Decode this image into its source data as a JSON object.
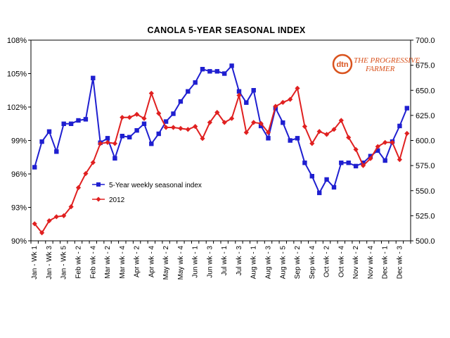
{
  "chart_data": {
    "type": "line",
    "title": "CANOLA 5-YEAR SEASONAL INDEX",
    "logo": {
      "brand": "dtn",
      "name_line1": "THE PROGRESSIVE",
      "name_line2": "FARMER"
    },
    "y_left": {
      "lim": [
        90,
        108
      ],
      "ticks": [
        "90%",
        "93%",
        "96%",
        "99%",
        "102%",
        "105%",
        "108%"
      ],
      "tick_values": [
        90,
        93,
        96,
        99,
        102,
        105,
        108
      ]
    },
    "y_right": {
      "lim": [
        500,
        700
      ],
      "ticks": [
        "500.0",
        "525.0",
        "550.0",
        "575.0",
        "600.0",
        "625.0",
        "650.0",
        "675.0",
        "700.0"
      ],
      "tick_values": [
        500,
        525,
        550,
        575,
        600,
        625,
        650,
        675,
        700
      ]
    },
    "x_tick_labels": [
      "Jan - Wk 1",
      "Jan - Wk 3",
      "Jan - Wk 5",
      "Feb wk - 2",
      "Feb wk - 4",
      "Mar wk - 2",
      "Mar wk - 4",
      "Apr wk - 2",
      "Apr wk - 4",
      "May wk - 2",
      "May wk - 4",
      "Jun wk - 1",
      "Jun wk - 3",
      "Jul wk - 1",
      "Jul wk - 3",
      "Aug wk - 1",
      "Aug wk - 3",
      "Aug wk - 5",
      "Sep wk - 2",
      "Sep wk - 4",
      "Oct wk - 2",
      "Oct wk - 4",
      "Nov wk - 2",
      "Nov wk - 4",
      "Dec wk - 1",
      "Dec wk - 3"
    ],
    "num_points": 52,
    "grid": false,
    "legend_position": "lower-left",
    "series": [
      {
        "name": "5-Year weekly seasonal index",
        "axis": "left",
        "color": "#1f1fd0",
        "marker": "square",
        "values": [
          96.6,
          98.9,
          99.8,
          98.0,
          100.5,
          100.5,
          100.8,
          100.9,
          104.6,
          98.8,
          99.2,
          97.4,
          99.4,
          99.3,
          99.9,
          100.5,
          98.7,
          99.6,
          100.7,
          101.4,
          102.5,
          103.4,
          104.2,
          105.4,
          105.2,
          105.2,
          105.0,
          105.7,
          103.4,
          102.4,
          103.5,
          100.3,
          99.2,
          101.9,
          100.6,
          99.0,
          99.2,
          97.0,
          95.8,
          94.3,
          95.5,
          94.8,
          97.0,
          97.0,
          96.7,
          97.0,
          97.6,
          98.1,
          97.2,
          98.9,
          100.3,
          101.9
        ]
      },
      {
        "name": "2012",
        "axis": "right",
        "color": "#e02020",
        "marker": "diamond",
        "values": [
          517,
          508,
          520,
          524,
          525,
          534,
          553,
          567,
          578,
          597,
          598,
          597,
          623,
          623,
          626,
          622,
          647,
          627,
          613,
          613,
          612,
          611,
          614,
          602,
          618,
          628,
          618,
          622,
          645,
          608,
          618,
          617,
          608,
          634,
          638,
          641,
          652,
          614,
          597,
          609,
          606,
          611,
          620,
          603,
          591,
          575,
          582,
          594,
          598,
          598,
          581,
          607
        ]
      }
    ]
  }
}
